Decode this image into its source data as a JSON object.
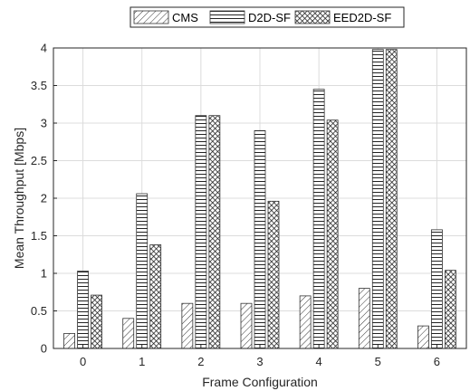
{
  "chart_data": {
    "type": "bar",
    "title": "",
    "xlabel": "Frame Configuration",
    "ylabel": "Mean Throughput [Mbps]",
    "categories": [
      "0",
      "1",
      "2",
      "3",
      "4",
      "5",
      "6"
    ],
    "ylim": [
      0,
      4
    ],
    "yticks": [
      0,
      0.5,
      1,
      1.5,
      2,
      2.5,
      3,
      3.5,
      4
    ],
    "ytick_labels": [
      "0",
      "0.5",
      "1",
      "1.5",
      "2",
      "2.5",
      "3",
      "3.5",
      "4"
    ],
    "grid": true,
    "legend_position": "top-center-outside",
    "series": [
      {
        "name": "CMS",
        "pattern": "diagonal-hatch",
        "values": [
          0.2,
          0.4,
          0.6,
          0.6,
          0.7,
          0.8,
          0.3
        ]
      },
      {
        "name": "D2D-SF",
        "pattern": "horizontal-hatch",
        "values": [
          1.03,
          2.06,
          3.1,
          2.9,
          3.45,
          3.98,
          1.58
        ]
      },
      {
        "name": "EED2D-SF",
        "pattern": "crosshatch",
        "values": [
          0.71,
          1.38,
          3.1,
          1.96,
          3.04,
          3.98,
          1.04
        ]
      }
    ]
  }
}
